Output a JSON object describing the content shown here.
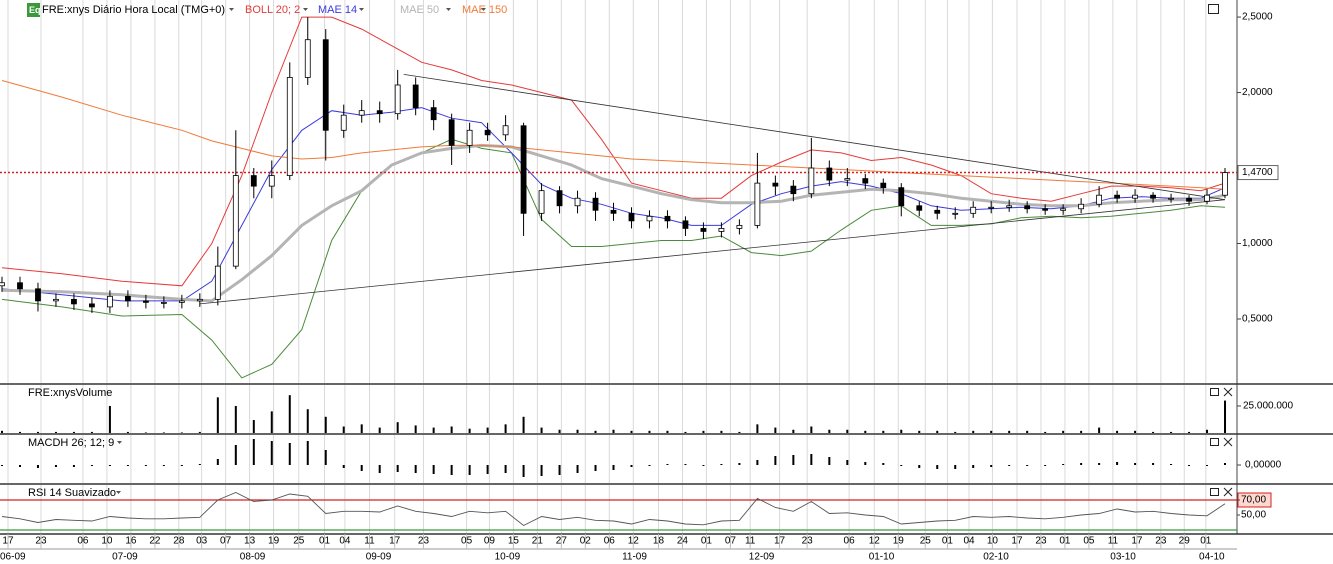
{
  "chart_data": {
    "type": "candlestick",
    "badge": "Eq",
    "title": "FRE:xnys Diário Hora Local (TMG+0)",
    "xlim": [
      0,
      206
    ],
    "xticks": [
      {
        "value": 1,
        "label": "17"
      },
      {
        "value": 6.5,
        "label": "23"
      },
      {
        "value": 13.5,
        "label": "06"
      },
      {
        "value": 17.5,
        "label": "10"
      },
      {
        "value": 21.5,
        "label": "16"
      },
      {
        "value": 25.5,
        "label": "22"
      },
      {
        "value": 29.5,
        "label": "28"
      },
      {
        "value": 33.3,
        "label": "03"
      },
      {
        "value": 37.3,
        "label": "07"
      },
      {
        "value": 41.3,
        "label": "13"
      },
      {
        "value": 45.3,
        "label": "19"
      },
      {
        "value": 49.5,
        "label": "25"
      },
      {
        "value": 53.8,
        "label": "01"
      },
      {
        "value": 57.2,
        "label": "04"
      },
      {
        "value": 61.3,
        "label": "11"
      },
      {
        "value": 65.5,
        "label": "17"
      },
      {
        "value": 70.3,
        "label": "23"
      },
      {
        "value": 77.5,
        "label": "05"
      },
      {
        "value": 81.3,
        "label": "09"
      },
      {
        "value": 85.3,
        "label": "15"
      },
      {
        "value": 89.3,
        "label": "21"
      },
      {
        "value": 93.3,
        "label": "27"
      },
      {
        "value": 97.3,
        "label": "02"
      },
      {
        "value": 101.3,
        "label": "06"
      },
      {
        "value": 105.3,
        "label": "12"
      },
      {
        "value": 109.5,
        "label": "18"
      },
      {
        "value": 113.5,
        "label": "24"
      },
      {
        "value": 117.5,
        "label": "01"
      },
      {
        "value": 121.5,
        "label": "07"
      },
      {
        "value": 124.8,
        "label": "11"
      },
      {
        "value": 129.7,
        "label": "17"
      },
      {
        "value": 134.3,
        "label": "23"
      },
      {
        "value": 141.3,
        "label": "06"
      },
      {
        "value": 145.5,
        "label": "12"
      },
      {
        "value": 149.5,
        "label": "19"
      },
      {
        "value": 154,
        "label": "25"
      },
      {
        "value": 157.7,
        "label": "01"
      },
      {
        "value": 161.3,
        "label": "04"
      },
      {
        "value": 165.2,
        "label": "10"
      },
      {
        "value": 169.3,
        "label": "17"
      },
      {
        "value": 173.3,
        "label": "23"
      },
      {
        "value": 177.3,
        "label": "01"
      },
      {
        "value": 181.3,
        "label": "05"
      },
      {
        "value": 185.3,
        "label": "11"
      },
      {
        "value": 189.3,
        "label": "17"
      },
      {
        "value": 193.3,
        "label": "23"
      },
      {
        "value": 197.2,
        "label": "29"
      },
      {
        "value": 200.8,
        "label": "01"
      }
    ],
    "month_ticks": [
      {
        "value": 1.8,
        "label": "06-09"
      },
      {
        "value": 20.5,
        "label": "07-09"
      },
      {
        "value": 41.8,
        "label": "08-09"
      },
      {
        "value": 62.8,
        "label": "09-09"
      },
      {
        "value": 84.3,
        "label": "10-09"
      },
      {
        "value": 105.5,
        "label": "11-09"
      },
      {
        "value": 126.7,
        "label": "12-09"
      },
      {
        "value": 146.7,
        "label": "01-10"
      },
      {
        "value": 165.8,
        "label": "02-10"
      },
      {
        "value": 187,
        "label": "03-10"
      },
      {
        "value": 201.8,
        "label": "04-10"
      }
    ],
    "ylim": [
      0.076,
      2.613
    ],
    "yticks": [
      {
        "value": 0.5,
        "label": "0,5000"
      },
      {
        "value": 1,
        "label": "1,0000"
      },
      {
        "value": 2,
        "label": "2,0000"
      },
      {
        "value": 2.5,
        "label": "2,5000"
      }
    ],
    "grid": true,
    "candles": {
      "up_color": "#ffffff",
      "down_color": "#000000",
      "x": [
        0,
        3,
        6,
        9,
        12,
        15,
        18,
        21,
        24,
        27,
        30,
        33,
        36,
        39,
        42,
        45,
        48,
        51,
        54,
        57,
        60,
        63,
        66,
        69,
        72,
        75,
        78,
        81,
        84,
        87,
        90,
        93,
        96,
        99,
        102,
        105,
        108,
        111,
        114,
        117,
        120,
        123,
        126,
        129,
        132,
        135,
        138,
        141,
        144,
        147,
        150,
        153,
        156,
        159,
        162,
        165,
        168,
        171,
        174,
        177,
        180,
        183,
        186,
        189,
        192,
        195,
        198,
        201,
        204
      ],
      "open": [
        0.72,
        0.74,
        0.7,
        0.62,
        0.63,
        0.6,
        0.58,
        0.65,
        0.62,
        0.61,
        0.61,
        0.62,
        0.63,
        0.85,
        1.45,
        1.38,
        1.45,
        2.1,
        2.35,
        1.75,
        1.85,
        1.88,
        1.86,
        2.05,
        1.9,
        1.82,
        1.65,
        1.75,
        1.72,
        1.78,
        1.2,
        1.35,
        1.25,
        1.3,
        1.22,
        1.2,
        1.15,
        1.18,
        1.15,
        1.1,
        1.08,
        1.1,
        1.12,
        1.4,
        1.38,
        1.33,
        1.5,
        1.42,
        1.43,
        1.4,
        1.37,
        1.25,
        1.22,
        1.2,
        1.2,
        1.24,
        1.24,
        1.25,
        1.23,
        1.22,
        1.23,
        1.26,
        1.32,
        1.3,
        1.32,
        1.3,
        1.3,
        1.28,
        1.32
      ],
      "high": [
        0.78,
        0.78,
        0.74,
        0.67,
        0.67,
        0.64,
        0.69,
        0.69,
        0.66,
        0.65,
        0.66,
        0.67,
        0.98,
        1.75,
        1.5,
        1.55,
        2.2,
        2.5,
        2.42,
        1.92,
        1.95,
        1.94,
        2.15,
        2.1,
        1.95,
        1.86,
        1.8,
        1.8,
        1.85,
        1.8,
        1.4,
        1.38,
        1.35,
        1.34,
        1.27,
        1.24,
        1.22,
        1.22,
        1.18,
        1.14,
        1.14,
        1.16,
        1.6,
        1.45,
        1.42,
        1.7,
        1.55,
        1.5,
        1.46,
        1.43,
        1.4,
        1.28,
        1.25,
        1.24,
        1.28,
        1.28,
        1.29,
        1.28,
        1.26,
        1.26,
        1.3,
        1.38,
        1.35,
        1.36,
        1.34,
        1.33,
        1.32,
        1.36,
        1.5
      ],
      "low": [
        0.68,
        0.66,
        0.55,
        0.58,
        0.56,
        0.54,
        0.54,
        0.58,
        0.57,
        0.57,
        0.57,
        0.58,
        0.59,
        0.83,
        1.3,
        1.3,
        1.42,
        2.05,
        1.55,
        1.7,
        1.8,
        1.8,
        1.82,
        1.85,
        1.75,
        1.52,
        1.6,
        1.68,
        1.68,
        1.05,
        1.15,
        1.2,
        1.2,
        1.15,
        1.15,
        1.1,
        1.1,
        1.1,
        1.05,
        1.03,
        1.04,
        1.06,
        1.1,
        1.32,
        1.28,
        1.3,
        1.38,
        1.38,
        1.36,
        1.33,
        1.18,
        1.18,
        1.16,
        1.16,
        1.17,
        1.2,
        1.21,
        1.2,
        1.19,
        1.19,
        1.2,
        1.24,
        1.27,
        1.27,
        1.27,
        1.27,
        1.25,
        1.26,
        1.3
      ],
      "close": [
        0.74,
        0.7,
        0.62,
        0.63,
        0.6,
        0.58,
        0.65,
        0.62,
        0.61,
        0.61,
        0.62,
        0.63,
        0.85,
        1.45,
        1.38,
        1.45,
        2.1,
        2.35,
        1.75,
        1.85,
        1.88,
        1.86,
        2.05,
        1.9,
        1.82,
        1.65,
        1.75,
        1.72,
        1.78,
        1.2,
        1.35,
        1.25,
        1.3,
        1.22,
        1.2,
        1.15,
        1.18,
        1.15,
        1.1,
        1.08,
        1.1,
        1.12,
        1.4,
        1.38,
        1.33,
        1.5,
        1.42,
        1.43,
        1.4,
        1.37,
        1.25,
        1.22,
        1.2,
        1.2,
        1.24,
        1.24,
        1.25,
        1.23,
        1.22,
        1.23,
        1.26,
        1.32,
        1.3,
        1.32,
        1.3,
        1.3,
        1.28,
        1.32,
        1.47
      ]
    },
    "line_x": [
      0,
      10,
      20,
      30,
      35,
      40,
      45,
      50,
      55,
      60,
      65,
      70,
      75,
      80,
      85,
      90,
      95,
      100,
      105,
      110,
      115,
      120,
      125,
      130,
      135,
      140,
      145,
      150,
      155,
      160,
      165,
      170,
      175,
      180,
      185,
      190,
      195,
      200,
      204
    ],
    "series": [
      {
        "name": "BOLL 20; 2",
        "color": "#e53a3a",
        "lower_color": "#4a8a3a",
        "values": [
          0.84,
          0.8,
          0.75,
          0.72,
          1.0,
          1.45,
          2.0,
          2.5,
          2.5,
          2.42,
          2.31,
          2.2,
          2.15,
          2.08,
          2.05,
          2.0,
          1.95,
          1.69,
          1.4,
          1.35,
          1.3,
          1.3,
          1.45,
          1.54,
          1.62,
          1.6,
          1.55,
          1.57,
          1.52,
          1.45,
          1.33,
          1.3,
          1.28,
          1.33,
          1.38,
          1.38,
          1.37,
          1.35,
          1.4
        ],
        "lower": [
          0.63,
          0.58,
          0.52,
          0.53,
          0.36,
          0.11,
          0.2,
          0.43,
          1.02,
          1.35,
          1.52,
          1.6,
          1.69,
          1.63,
          1.6,
          1.16,
          0.98,
          0.98,
          1.0,
          1.02,
          1.02,
          1.05,
          0.94,
          0.92,
          0.95,
          1.09,
          1.22,
          1.25,
          1.12,
          1.12,
          1.13,
          1.17,
          1.18,
          1.17,
          1.18,
          1.2,
          1.22,
          1.25,
          1.24
        ]
      },
      {
        "name": "MAE 14",
        "color": "#3a3adf",
        "width": 1,
        "values": [
          0.7,
          0.66,
          0.62,
          0.62,
          0.75,
          1.12,
          1.49,
          1.75,
          1.88,
          1.85,
          1.87,
          1.9,
          1.83,
          1.8,
          1.6,
          1.39,
          1.3,
          1.26,
          1.2,
          1.17,
          1.12,
          1.12,
          1.26,
          1.33,
          1.38,
          1.41,
          1.38,
          1.33,
          1.25,
          1.22,
          1.23,
          1.24,
          1.23,
          1.25,
          1.3,
          1.31,
          1.3,
          1.3,
          1.37
        ]
      },
      {
        "name": "MAE 50",
        "color": "#b4b4b4",
        "width": 3,
        "values": [
          0.69,
          0.68,
          0.66,
          0.63,
          0.62,
          0.76,
          0.92,
          1.12,
          1.25,
          1.35,
          1.52,
          1.6,
          1.63,
          1.65,
          1.64,
          1.58,
          1.52,
          1.43,
          1.38,
          1.33,
          1.29,
          1.27,
          1.27,
          1.28,
          1.32,
          1.34,
          1.36,
          1.35,
          1.33,
          1.3,
          1.28,
          1.26,
          1.25,
          1.25,
          1.27,
          1.28,
          1.29,
          1.29,
          1.32
        ]
      },
      {
        "name": "MAE 150",
        "color": "#f07a3a",
        "width": 1,
        "values": [
          2.08,
          1.97,
          1.85,
          1.75,
          1.68,
          1.63,
          1.58,
          1.56,
          1.57,
          1.6,
          1.62,
          1.64,
          1.65,
          1.65,
          1.64,
          1.62,
          1.6,
          1.58,
          1.56,
          1.55,
          1.54,
          1.53,
          1.52,
          1.51,
          1.5,
          1.49,
          1.48,
          1.47,
          1.46,
          1.45,
          1.44,
          1.43,
          1.42,
          1.41,
          1.4,
          1.39,
          1.38,
          1.37,
          1.36
        ]
      }
    ],
    "trendlines": [
      {
        "x": [
          33,
          204
        ],
        "values": [
          0.6,
          1.29
        ]
      },
      {
        "x": [
          67,
          204
        ],
        "values": [
          2.12,
          1.29
        ]
      }
    ],
    "last_price": {
      "value": 1.47,
      "label": "1,4700"
    },
    "last_color": "#d42020",
    "volume": {
      "title": "FRE:xnysVolume",
      "ylim": [
        0,
        44400000
      ],
      "yticks": [
        {
          "value": 25000000,
          "label": "25.000.000"
        }
      ],
      "values": [
        2000000,
        1000000,
        1000000,
        1000000,
        1000000,
        1000000,
        25000000,
        1000000,
        500000,
        500000,
        500000,
        1000000,
        33000000,
        25000000,
        12000000,
        20000000,
        35000000,
        22000000,
        15000000,
        6000000,
        8000000,
        5000000,
        10000000,
        7000000,
        5000000,
        6000000,
        4000000,
        5000000,
        8000000,
        15000000,
        5000000,
        3000000,
        3000000,
        2000000,
        3000000,
        2000000,
        2000000,
        2000000,
        1000000,
        2000000,
        2000000,
        1000000,
        8000000,
        5000000,
        3000000,
        6000000,
        3000000,
        3000000,
        2000000,
        2000000,
        3000000,
        2000000,
        2000000,
        1000000,
        2000000,
        2000000,
        2000000,
        2000000,
        1000000,
        2000000,
        2000000,
        5000000,
        2000000,
        2000000,
        1000000,
        1000000,
        1000000,
        3000000,
        30000000
      ]
    },
    "macd": {
      "title": "MACDH 26; 12; 9",
      "ylim": [
        -0.18,
        0.3
      ],
      "yticks": [
        {
          "value": 0,
          "label": "0,00000"
        }
      ],
      "values": [
        -0.01,
        -0.02,
        -0.03,
        -0.02,
        -0.02,
        -0.01,
        0,
        0,
        0,
        0,
        0,
        0.01,
        0.06,
        0.2,
        0.26,
        0.24,
        0.22,
        0.24,
        0.15,
        -0.03,
        -0.06,
        -0.08,
        -0.07,
        -0.08,
        -0.09,
        -0.1,
        -0.1,
        -0.09,
        -0.08,
        -0.12,
        -0.11,
        -0.1,
        -0.08,
        -0.06,
        -0.05,
        -0.02,
        -0.01,
        0.01,
        0.01,
        0,
        0.01,
        0.02,
        0.05,
        0.09,
        0.1,
        0.11,
        0.08,
        0.05,
        0.03,
        0.02,
        -0.01,
        -0.03,
        -0.04,
        -0.04,
        -0.03,
        -0.02,
        -0.01,
        0,
        0,
        0.01,
        0.02,
        0.02,
        0.03,
        0.02,
        0.02,
        0.01,
        0,
        0,
        0.02
      ]
    },
    "rsi": {
      "title": "RSI 14 Suavizado",
      "ylim": [
        26,
        90
      ],
      "yticks": [
        {
          "value": 70,
          "label": "70,00"
        },
        {
          "value": 50,
          "label": "50,00"
        }
      ],
      "levels": [
        {
          "value": 70,
          "color": "#d42020"
        },
        {
          "value": 30,
          "color": "#3a9a3a"
        }
      ],
      "values": [
        48,
        45,
        40,
        44,
        43,
        42,
        48,
        46,
        45,
        45,
        46,
        47,
        70,
        80,
        68,
        70,
        78,
        75,
        52,
        55,
        55,
        54,
        62,
        55,
        52,
        48,
        55,
        53,
        55,
        36,
        48,
        44,
        47,
        43,
        42,
        38,
        44,
        42,
        38,
        37,
        42,
        43,
        72,
        60,
        55,
        68,
        52,
        53,
        50,
        48,
        38,
        40,
        42,
        43,
        48,
        47,
        48,
        46,
        45,
        47,
        50,
        52,
        58,
        54,
        55,
        52,
        50,
        49,
        65
      ]
    }
  }
}
